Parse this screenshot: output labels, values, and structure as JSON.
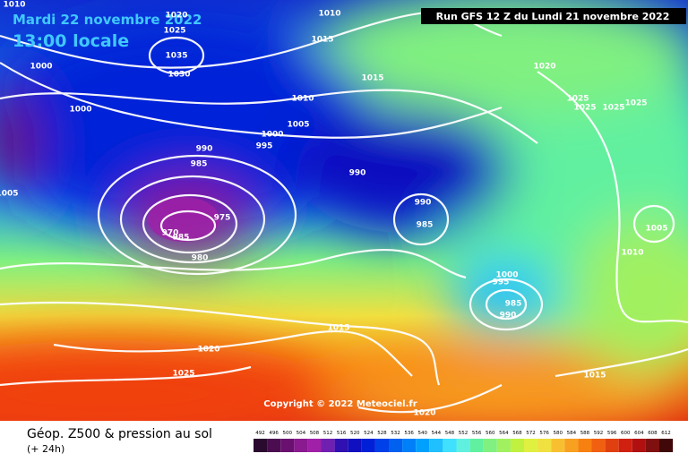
{
  "header": {
    "date": "Mardi 22 novembre 2022",
    "time": "13:00 locale",
    "run": "Run GFS 12 Z du Lundi 21 novembre 2022"
  },
  "copyright": "Copyright © 2022 Meteociel.fr",
  "footer": {
    "title": "Géop. Z500 & pression au sol",
    "lead": "(+ 24h)"
  },
  "legend": {
    "labels": [
      492,
      496,
      500,
      504,
      508,
      512,
      516,
      520,
      524,
      528,
      532,
      536,
      540,
      544,
      548,
      552,
      556,
      560,
      564,
      568,
      572,
      576,
      580,
      584,
      588,
      592,
      596,
      600,
      604,
      608,
      612
    ],
    "colors": [
      "#2a0a2e",
      "#4b0d4f",
      "#6a1070",
      "#8a1a90",
      "#a020a8",
      "#7020b0",
      "#3010b0",
      "#1010c0",
      "#0020d8",
      "#0040e8",
      "#0060f0",
      "#0080f8",
      "#00a0ff",
      "#20c0ff",
      "#40e0ff",
      "#60f0e0",
      "#60f0a0",
      "#80f080",
      "#a0f060",
      "#c0f040",
      "#e0f040",
      "#f0e040",
      "#f8c030",
      "#f8a020",
      "#f88010",
      "#f06010",
      "#e04010",
      "#d02010",
      "#b01010",
      "#801010",
      "#400808"
    ]
  },
  "isobar_labels": [
    1010,
    1020,
    1010,
    1025,
    1015,
    1035,
    1030,
    1000,
    1020,
    1015,
    1010,
    1000,
    1025,
    1025,
    1025,
    1025,
    1005,
    1000,
    995,
    990,
    985,
    990,
    1005,
    990,
    975,
    985,
    970,
    985,
    1005,
    980,
    1010,
    1000,
    995,
    985,
    990,
    1015,
    1020,
    1025,
    1015,
    1020
  ]
}
